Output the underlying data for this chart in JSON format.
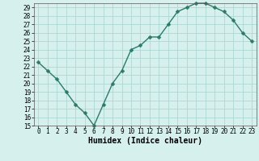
{
  "x": [
    0,
    1,
    2,
    3,
    4,
    5,
    6,
    7,
    8,
    9,
    10,
    11,
    12,
    13,
    14,
    15,
    16,
    17,
    18,
    19,
    20,
    21,
    22,
    23
  ],
  "y": [
    22.5,
    21.5,
    20.5,
    19.0,
    17.5,
    16.5,
    15.0,
    17.5,
    20.0,
    21.5,
    24.0,
    24.5,
    25.5,
    25.5,
    27.0,
    28.5,
    29.0,
    29.5,
    29.5,
    29.0,
    28.5,
    27.5,
    26.0,
    25.0
  ],
  "xlabel": "Humidex (Indice chaleur)",
  "xlim": [
    -0.5,
    23.5
  ],
  "ylim": [
    15,
    29.5
  ],
  "yticks": [
    15,
    16,
    17,
    18,
    19,
    20,
    21,
    22,
    23,
    24,
    25,
    26,
    27,
    28,
    29
  ],
  "xticks": [
    0,
    1,
    2,
    3,
    4,
    5,
    6,
    7,
    8,
    9,
    10,
    11,
    12,
    13,
    14,
    15,
    16,
    17,
    18,
    19,
    20,
    21,
    22,
    23
  ],
  "line_color": "#2d7a6a",
  "bg_color": "#d6f0ee",
  "grid_color": "#afd8d4",
  "xlabel_fontsize": 7,
  "tick_fontsize": 5.5,
  "line_width": 1.0,
  "marker_size": 2.5
}
